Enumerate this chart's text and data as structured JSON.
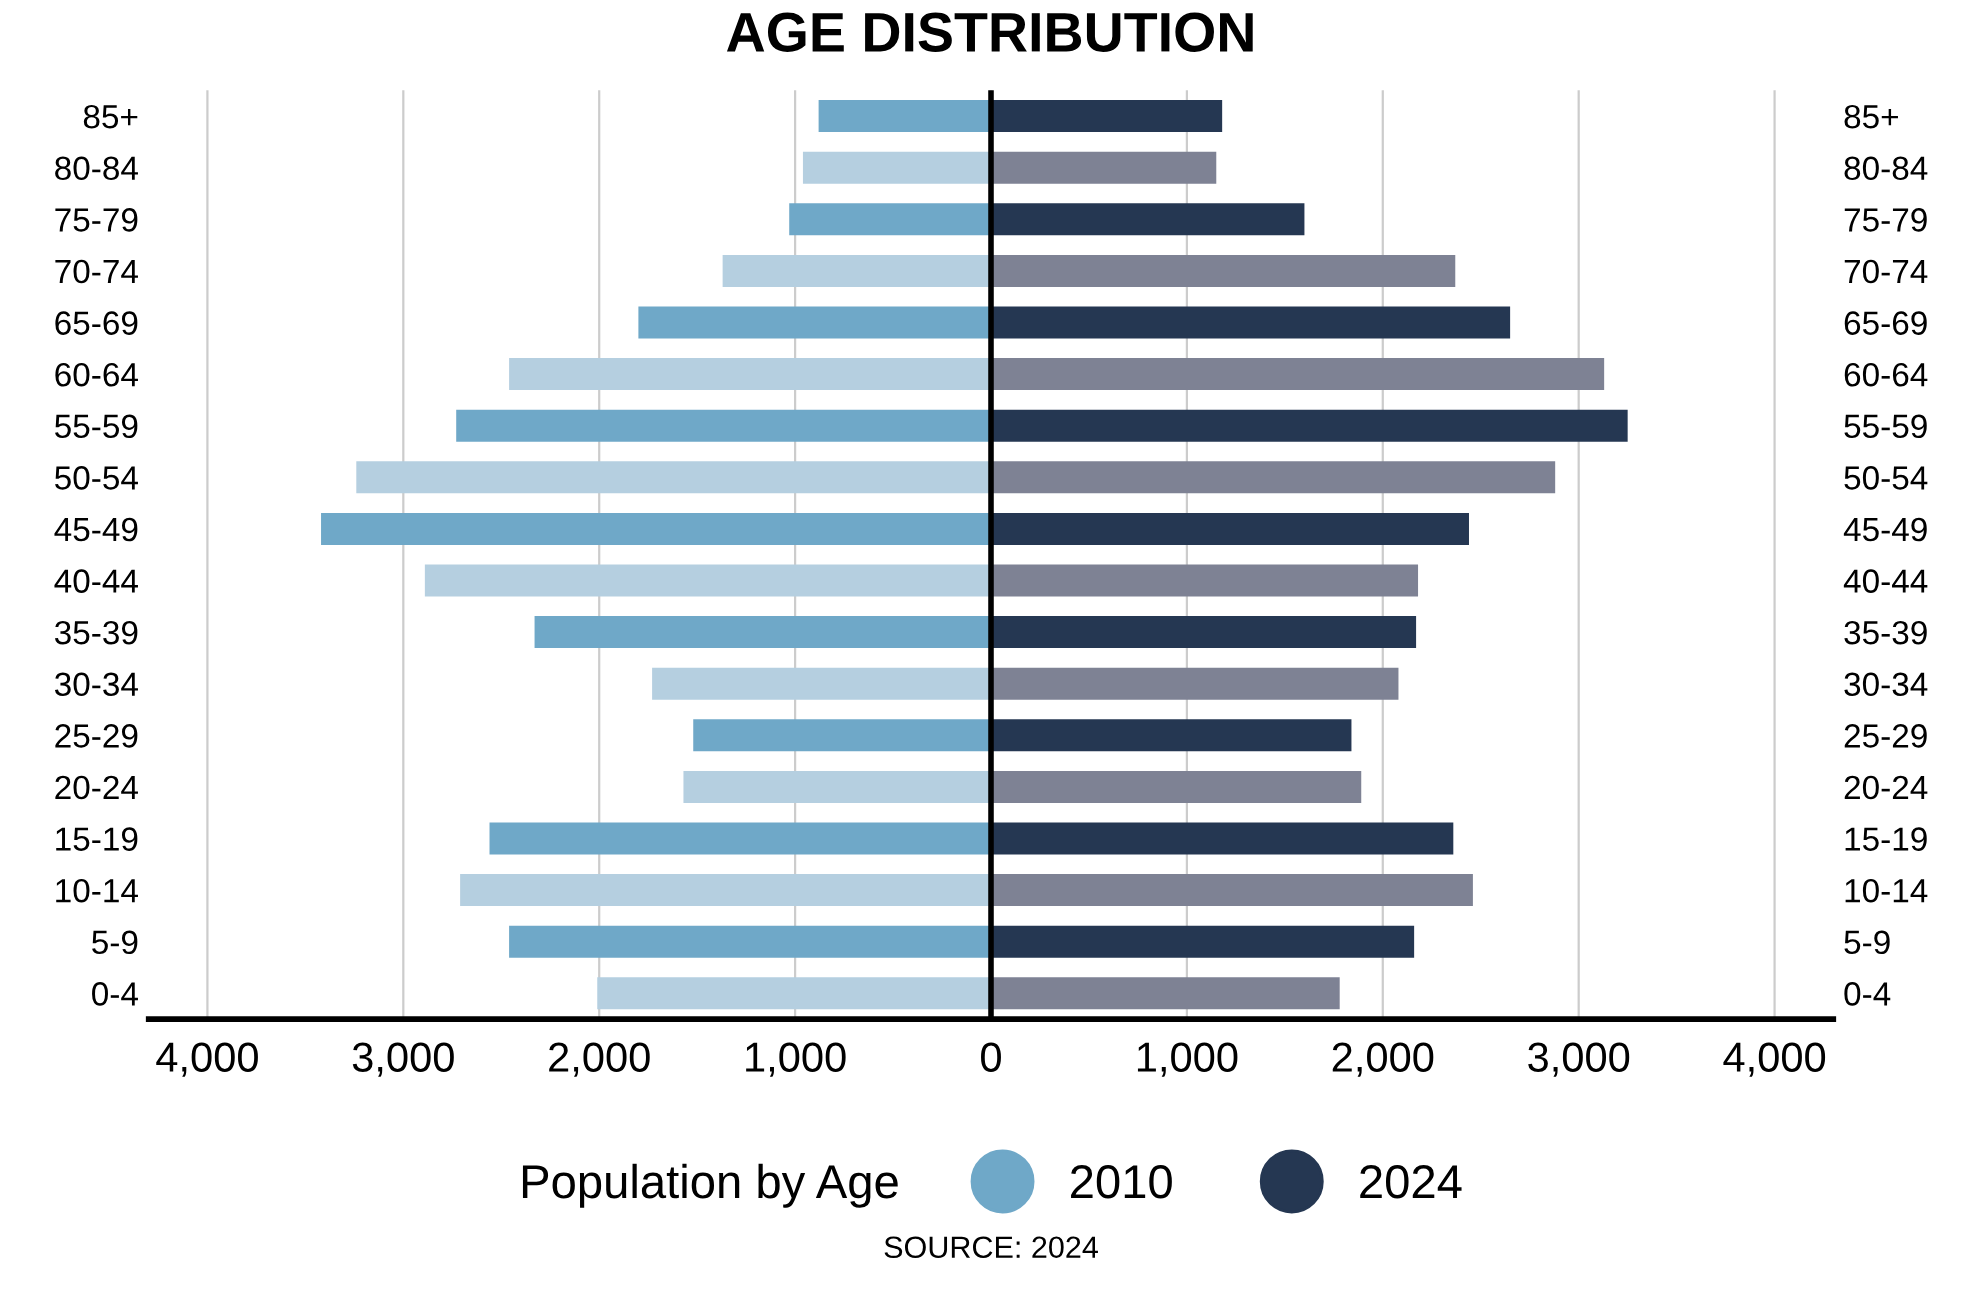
{
  "chart_data": {
    "type": "bar",
    "orientation": "horizontal",
    "stacked": true,
    "title": "AGE DISTRIBUTION",
    "legend_title": "Population by Age",
    "legend": "bottom",
    "grid": "x",
    "categories": [
      "85+",
      "80-84",
      "75-79",
      "70-74",
      "65-69",
      "60-64",
      "55-59",
      "50-54",
      "45-49",
      "40-44",
      "35-39",
      "30-34",
      "25-29",
      "20-24",
      "15-19",
      "10-14",
      "5-9",
      "0-4"
    ],
    "series": [
      {
        "name": "2010",
        "color": "#6fa8c8",
        "colors": [
          "#6fa8c8",
          "#b5cfe0",
          "#6fa8c8",
          "#b5cfe0",
          "#6fa8c8",
          "#b5cfe0",
          "#6fa8c8",
          "#b5cfe0",
          "#6fa8c8",
          "#b5cfe0",
          "#6fa8c8",
          "#b5cfe0",
          "#6fa8c8",
          "#b5cfe0",
          "#6fa8c8",
          "#b5cfe0",
          "#6fa8c8",
          "#b5cfe0"
        ],
        "values": [
          -880,
          -960,
          -1030,
          -1370,
          -1800,
          -2460,
          -2730,
          -3240,
          -3420,
          -2890,
          -2330,
          -1730,
          -1520,
          -1570,
          -2560,
          -2710,
          -2460,
          -2010
        ]
      },
      {
        "name": "2024",
        "color": "#253752",
        "colors": [
          "#253752",
          "#7e8294",
          "#253752",
          "#7e8294",
          "#253752",
          "#7e8294",
          "#253752",
          "#7e8294",
          "#253752",
          "#7e8294",
          "#253752",
          "#7e8294",
          "#253752",
          "#7e8294",
          "#253752",
          "#7e8294",
          "#253752",
          "#7e8294"
        ],
        "values": [
          1180,
          1150,
          1600,
          2370,
          2650,
          3130,
          3250,
          2880,
          2440,
          2180,
          2170,
          2080,
          1840,
          1890,
          2360,
          2460,
          2160,
          1780
        ]
      }
    ],
    "xlim": [
      -4300,
      4300
    ],
    "xticks": [
      {
        "value": -4000,
        "label": "4,000"
      },
      {
        "value": -3000,
        "label": "3,000"
      },
      {
        "value": -2000,
        "label": "2,000"
      },
      {
        "value": -1000,
        "label": "1,000"
      },
      0,
      {
        "value": 1000,
        "label": "1,000"
      },
      {
        "value": 2000,
        "label": "2,000"
      },
      {
        "value": 3000,
        "label": "3,000"
      },
      {
        "value": 4000,
        "label": "4,000"
      }
    ],
    "annotations": [
      "SOURCE: 2024"
    ]
  }
}
